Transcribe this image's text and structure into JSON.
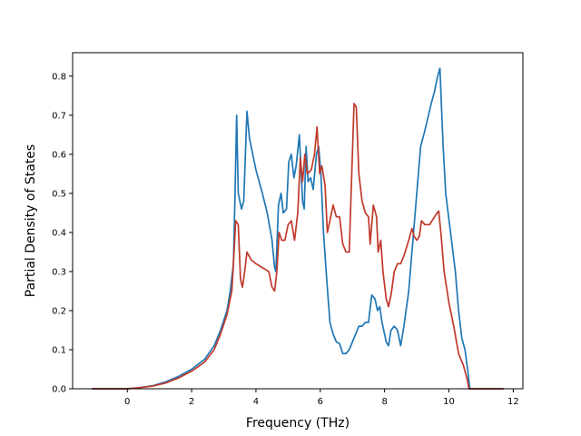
{
  "chart_data": {
    "type": "line",
    "title": "",
    "xlabel": "Frequency (THz)",
    "ylabel": "Partial Density of States",
    "xlim": [
      -1.7,
      12.3
    ],
    "ylim": [
      0.0,
      0.86
    ],
    "xticks": [
      0,
      2,
      4,
      6,
      8,
      10,
      12
    ],
    "yticks": [
      0.0,
      0.1,
      0.2,
      0.3,
      0.4,
      0.5,
      0.6,
      0.7,
      0.8
    ],
    "ytick_labels": [
      "0.0",
      "0.1",
      "0.2",
      "0.3",
      "0.4",
      "0.5",
      "0.6",
      "0.7",
      "0.8"
    ],
    "grid": false,
    "legend": "none",
    "series": [
      {
        "color": "#1f77b4",
        "points": [
          [
            -1.1,
            0.0
          ],
          [
            0.0,
            0.0
          ],
          [
            0.4,
            0.003
          ],
          [
            0.8,
            0.008
          ],
          [
            1.2,
            0.018
          ],
          [
            1.6,
            0.032
          ],
          [
            2.0,
            0.05
          ],
          [
            2.4,
            0.075
          ],
          [
            2.7,
            0.11
          ],
          [
            2.9,
            0.15
          ],
          [
            3.1,
            0.2
          ],
          [
            3.2,
            0.25
          ],
          [
            3.3,
            0.32
          ],
          [
            3.35,
            0.5
          ],
          [
            3.4,
            0.7
          ],
          [
            3.45,
            0.5
          ],
          [
            3.55,
            0.46
          ],
          [
            3.62,
            0.48
          ],
          [
            3.72,
            0.71
          ],
          [
            3.8,
            0.64
          ],
          [
            4.0,
            0.56
          ],
          [
            4.2,
            0.5
          ],
          [
            4.35,
            0.45
          ],
          [
            4.5,
            0.38
          ],
          [
            4.58,
            0.31
          ],
          [
            4.62,
            0.3
          ],
          [
            4.7,
            0.47
          ],
          [
            4.78,
            0.5
          ],
          [
            4.85,
            0.45
          ],
          [
            4.95,
            0.46
          ],
          [
            5.02,
            0.58
          ],
          [
            5.1,
            0.6
          ],
          [
            5.18,
            0.54
          ],
          [
            5.25,
            0.57
          ],
          [
            5.35,
            0.65
          ],
          [
            5.45,
            0.48
          ],
          [
            5.5,
            0.46
          ],
          [
            5.56,
            0.62
          ],
          [
            5.62,
            0.53
          ],
          [
            5.7,
            0.54
          ],
          [
            5.78,
            0.51
          ],
          [
            5.88,
            0.6
          ],
          [
            5.95,
            0.62
          ],
          [
            6.02,
            0.55
          ],
          [
            6.1,
            0.4
          ],
          [
            6.2,
            0.28
          ],
          [
            6.3,
            0.17
          ],
          [
            6.4,
            0.14
          ],
          [
            6.5,
            0.12
          ],
          [
            6.6,
            0.115
          ],
          [
            6.7,
            0.09
          ],
          [
            6.8,
            0.09
          ],
          [
            6.9,
            0.1
          ],
          [
            7.0,
            0.12
          ],
          [
            7.1,
            0.14
          ],
          [
            7.2,
            0.16
          ],
          [
            7.3,
            0.16
          ],
          [
            7.4,
            0.17
          ],
          [
            7.5,
            0.17
          ],
          [
            7.6,
            0.24
          ],
          [
            7.7,
            0.23
          ],
          [
            7.78,
            0.2
          ],
          [
            7.85,
            0.21
          ],
          [
            7.92,
            0.17
          ],
          [
            8.05,
            0.12
          ],
          [
            8.12,
            0.11
          ],
          [
            8.2,
            0.15
          ],
          [
            8.3,
            0.16
          ],
          [
            8.4,
            0.15
          ],
          [
            8.5,
            0.11
          ],
          [
            8.6,
            0.16
          ],
          [
            8.75,
            0.25
          ],
          [
            8.9,
            0.4
          ],
          [
            9.05,
            0.55
          ],
          [
            9.12,
            0.62
          ],
          [
            9.25,
            0.66
          ],
          [
            9.45,
            0.73
          ],
          [
            9.55,
            0.76
          ],
          [
            9.65,
            0.8
          ],
          [
            9.72,
            0.82
          ],
          [
            9.82,
            0.62
          ],
          [
            9.9,
            0.5
          ],
          [
            10.05,
            0.4
          ],
          [
            10.2,
            0.3
          ],
          [
            10.3,
            0.2
          ],
          [
            10.4,
            0.13
          ],
          [
            10.5,
            0.1
          ],
          [
            10.58,
            0.05
          ],
          [
            10.65,
            0.0
          ],
          [
            11.7,
            0.0
          ]
        ]
      },
      {
        "color": "#c0392b",
        "points": [
          [
            -1.1,
            0.0
          ],
          [
            0.0,
            0.0
          ],
          [
            0.4,
            0.003
          ],
          [
            0.8,
            0.007
          ],
          [
            1.2,
            0.015
          ],
          [
            1.6,
            0.028
          ],
          [
            2.0,
            0.045
          ],
          [
            2.4,
            0.068
          ],
          [
            2.7,
            0.1
          ],
          [
            2.9,
            0.14
          ],
          [
            3.1,
            0.19
          ],
          [
            3.25,
            0.25
          ],
          [
            3.32,
            0.35
          ],
          [
            3.37,
            0.43
          ],
          [
            3.45,
            0.42
          ],
          [
            3.52,
            0.28
          ],
          [
            3.58,
            0.26
          ],
          [
            3.65,
            0.3
          ],
          [
            3.72,
            0.35
          ],
          [
            3.85,
            0.33
          ],
          [
            4.0,
            0.32
          ],
          [
            4.2,
            0.31
          ],
          [
            4.4,
            0.3
          ],
          [
            4.5,
            0.26
          ],
          [
            4.58,
            0.25
          ],
          [
            4.65,
            0.3
          ],
          [
            4.72,
            0.4
          ],
          [
            4.8,
            0.38
          ],
          [
            4.9,
            0.38
          ],
          [
            5.0,
            0.42
          ],
          [
            5.1,
            0.43
          ],
          [
            5.2,
            0.38
          ],
          [
            5.3,
            0.45
          ],
          [
            5.38,
            0.59
          ],
          [
            5.45,
            0.53
          ],
          [
            5.52,
            0.6
          ],
          [
            5.6,
            0.55
          ],
          [
            5.72,
            0.56
          ],
          [
            5.82,
            0.6
          ],
          [
            5.9,
            0.67
          ],
          [
            5.98,
            0.55
          ],
          [
            6.05,
            0.57
          ],
          [
            6.15,
            0.52
          ],
          [
            6.22,
            0.4
          ],
          [
            6.3,
            0.43
          ],
          [
            6.4,
            0.47
          ],
          [
            6.5,
            0.44
          ],
          [
            6.6,
            0.44
          ],
          [
            6.7,
            0.37
          ],
          [
            6.8,
            0.35
          ],
          [
            6.9,
            0.35
          ],
          [
            7.05,
            0.73
          ],
          [
            7.12,
            0.72
          ],
          [
            7.2,
            0.55
          ],
          [
            7.3,
            0.48
          ],
          [
            7.4,
            0.45
          ],
          [
            7.5,
            0.44
          ],
          [
            7.55,
            0.37
          ],
          [
            7.65,
            0.47
          ],
          [
            7.75,
            0.44
          ],
          [
            7.8,
            0.35
          ],
          [
            7.88,
            0.38
          ],
          [
            7.95,
            0.3
          ],
          [
            8.05,
            0.23
          ],
          [
            8.12,
            0.21
          ],
          [
            8.2,
            0.24
          ],
          [
            8.3,
            0.3
          ],
          [
            8.4,
            0.32
          ],
          [
            8.5,
            0.32
          ],
          [
            8.6,
            0.34
          ],
          [
            8.75,
            0.38
          ],
          [
            8.85,
            0.41
          ],
          [
            8.92,
            0.39
          ],
          [
            9.0,
            0.38
          ],
          [
            9.08,
            0.39
          ],
          [
            9.15,
            0.43
          ],
          [
            9.25,
            0.42
          ],
          [
            9.4,
            0.42
          ],
          [
            9.55,
            0.44
          ],
          [
            9.68,
            0.455
          ],
          [
            9.75,
            0.4
          ],
          [
            9.85,
            0.3
          ],
          [
            10.0,
            0.22
          ],
          [
            10.15,
            0.16
          ],
          [
            10.3,
            0.09
          ],
          [
            10.45,
            0.06
          ],
          [
            10.58,
            0.02
          ],
          [
            10.62,
            0.0
          ],
          [
            11.7,
            0.0
          ]
        ]
      }
    ]
  }
}
